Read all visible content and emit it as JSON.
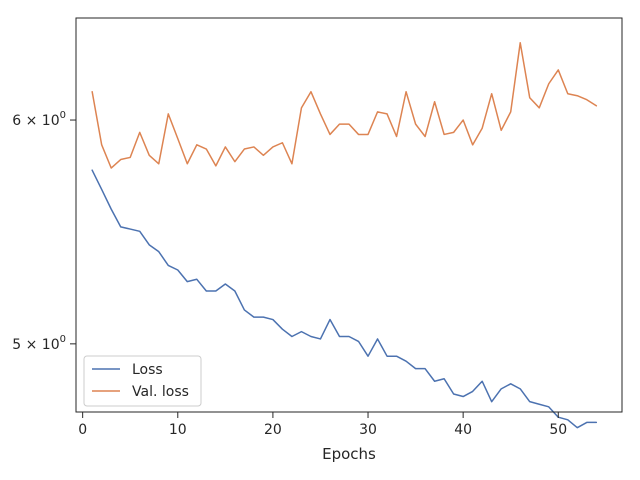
{
  "chart_data": {
    "type": "line",
    "xlabel": "Epochs",
    "ylabel": "",
    "yscale": "log",
    "xlim": [
      -0.7,
      56.7
    ],
    "ylim": [
      4.73,
      6.52
    ],
    "grid": false,
    "legend_position": "lower-left",
    "x_ticks": [
      {
        "value": 0,
        "label": "0"
      },
      {
        "value": 10,
        "label": "10"
      },
      {
        "value": 20,
        "label": "20"
      },
      {
        "value": 30,
        "label": "30"
      },
      {
        "value": 40,
        "label": "40"
      },
      {
        "value": 50,
        "label": "50"
      }
    ],
    "y_ticks": [
      {
        "value": 5.0,
        "label": "5 × 10",
        "exp": "0"
      },
      {
        "value": 6.0,
        "label": "6 × 10",
        "exp": "0"
      }
    ],
    "x": [
      1,
      2,
      3,
      4,
      5,
      6,
      7,
      8,
      9,
      10,
      11,
      12,
      13,
      14,
      15,
      16,
      17,
      18,
      19,
      20,
      21,
      22,
      23,
      24,
      25,
      26,
      27,
      28,
      29,
      30,
      31,
      32,
      33,
      34,
      35,
      36,
      37,
      38,
      39,
      40,
      41,
      42,
      43,
      44,
      45,
      46,
      47,
      48,
      49,
      50,
      51,
      52,
      53,
      54
    ],
    "series": [
      {
        "name": "Loss",
        "color": "#4c72b0",
        "values": [
          5.76,
          5.67,
          5.58,
          5.5,
          5.49,
          5.48,
          5.42,
          5.39,
          5.33,
          5.31,
          5.26,
          5.27,
          5.22,
          5.22,
          5.25,
          5.22,
          5.14,
          5.11,
          5.11,
          5.1,
          5.06,
          5.03,
          5.05,
          5.03,
          5.02,
          5.1,
          5.03,
          5.03,
          5.01,
          4.95,
          5.02,
          4.95,
          4.95,
          4.93,
          4.9,
          4.9,
          4.85,
          4.86,
          4.8,
          4.79,
          4.81,
          4.85,
          4.77,
          4.82,
          4.84,
          4.82,
          4.77,
          4.76,
          4.75,
          4.71,
          4.7,
          4.67,
          4.69,
          4.69
        ]
      },
      {
        "name": "Val. loss",
        "color": "#dd8452",
        "values": [
          6.14,
          5.88,
          5.77,
          5.81,
          5.82,
          5.94,
          5.83,
          5.79,
          6.03,
          5.91,
          5.79,
          5.88,
          5.86,
          5.78,
          5.87,
          5.8,
          5.86,
          5.87,
          5.83,
          5.87,
          5.89,
          5.79,
          6.06,
          6.14,
          6.03,
          5.93,
          5.98,
          5.98,
          5.93,
          5.93,
          6.04,
          6.03,
          5.92,
          6.14,
          5.98,
          5.92,
          6.09,
          5.93,
          5.94,
          6.0,
          5.88,
          5.96,
          6.13,
          5.95,
          6.04,
          6.39,
          6.11,
          6.06,
          6.18,
          6.25,
          6.13,
          6.12,
          6.1,
          6.07
        ]
      }
    ]
  }
}
